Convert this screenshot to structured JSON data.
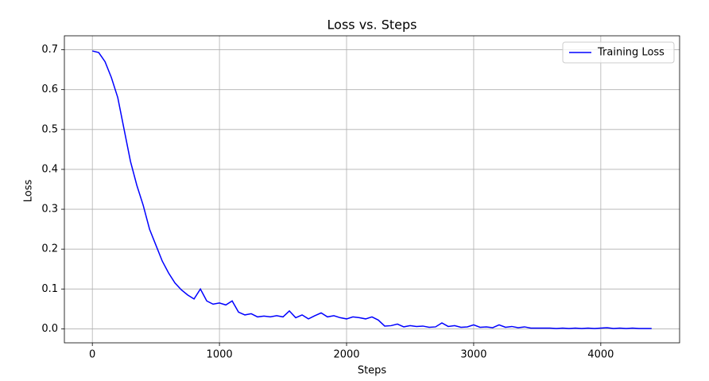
{
  "chart_data": {
    "type": "line",
    "title": "Loss vs. Steps",
    "x_label": "Steps",
    "y_label": "Loss",
    "x": [
      0,
      50,
      100,
      150,
      200,
      250,
      300,
      350,
      400,
      450,
      500,
      550,
      600,
      650,
      700,
      750,
      800,
      850,
      900,
      950,
      1000,
      1050,
      1100,
      1150,
      1200,
      1250,
      1300,
      1350,
      1400,
      1450,
      1500,
      1550,
      1600,
      1650,
      1700,
      1750,
      1800,
      1850,
      1900,
      1950,
      2000,
      2050,
      2100,
      2150,
      2200,
      2250,
      2300,
      2350,
      2400,
      2450,
      2500,
      2550,
      2600,
      2650,
      2700,
      2750,
      2800,
      2850,
      2900,
      2950,
      3000,
      3050,
      3100,
      3150,
      3200,
      3250,
      3300,
      3350,
      3400,
      3450,
      3500,
      3550,
      3600,
      3650,
      3700,
      3750,
      3800,
      3850,
      3900,
      3950,
      4000,
      4050,
      4100,
      4150,
      4200,
      4250,
      4300,
      4350,
      4400
    ],
    "series": [
      {
        "name": "Training Loss",
        "color": "#0000ff",
        "values": [
          0.697,
          0.693,
          0.67,
          0.63,
          0.58,
          0.5,
          0.42,
          0.36,
          0.31,
          0.25,
          0.21,
          0.17,
          0.14,
          0.115,
          0.098,
          0.085,
          0.075,
          0.1,
          0.07,
          0.062,
          0.065,
          0.06,
          0.07,
          0.042,
          0.035,
          0.038,
          0.03,
          0.032,
          0.03,
          0.033,
          0.03,
          0.045,
          0.028,
          0.035,
          0.025,
          0.033,
          0.04,
          0.03,
          0.033,
          0.028,
          0.025,
          0.03,
          0.028,
          0.025,
          0.03,
          0.022,
          0.007,
          0.008,
          0.012,
          0.005,
          0.008,
          0.006,
          0.007,
          0.004,
          0.005,
          0.015,
          0.006,
          0.008,
          0.004,
          0.005,
          0.01,
          0.004,
          0.005,
          0.003,
          0.01,
          0.004,
          0.006,
          0.003,
          0.005,
          0.002,
          0.002,
          0.002,
          0.002,
          0.001,
          0.002,
          0.001,
          0.002,
          0.001,
          0.002,
          0.001,
          0.002,
          0.003,
          0.001,
          0.002,
          0.001,
          0.002,
          0.001,
          0.001,
          0.001
        ]
      }
    ],
    "xlim": [
      -220,
      4620
    ],
    "ylim": [
      -0.035,
      0.735
    ],
    "xticks": [
      0,
      1000,
      2000,
      3000,
      4000
    ],
    "yticks": [
      {
        "value": 0,
        "label": "0.0"
      },
      0.1,
      0.2,
      0.3,
      0.4,
      0.5,
      0.6,
      0.7
    ],
    "grid": true,
    "legend": "upper right"
  }
}
